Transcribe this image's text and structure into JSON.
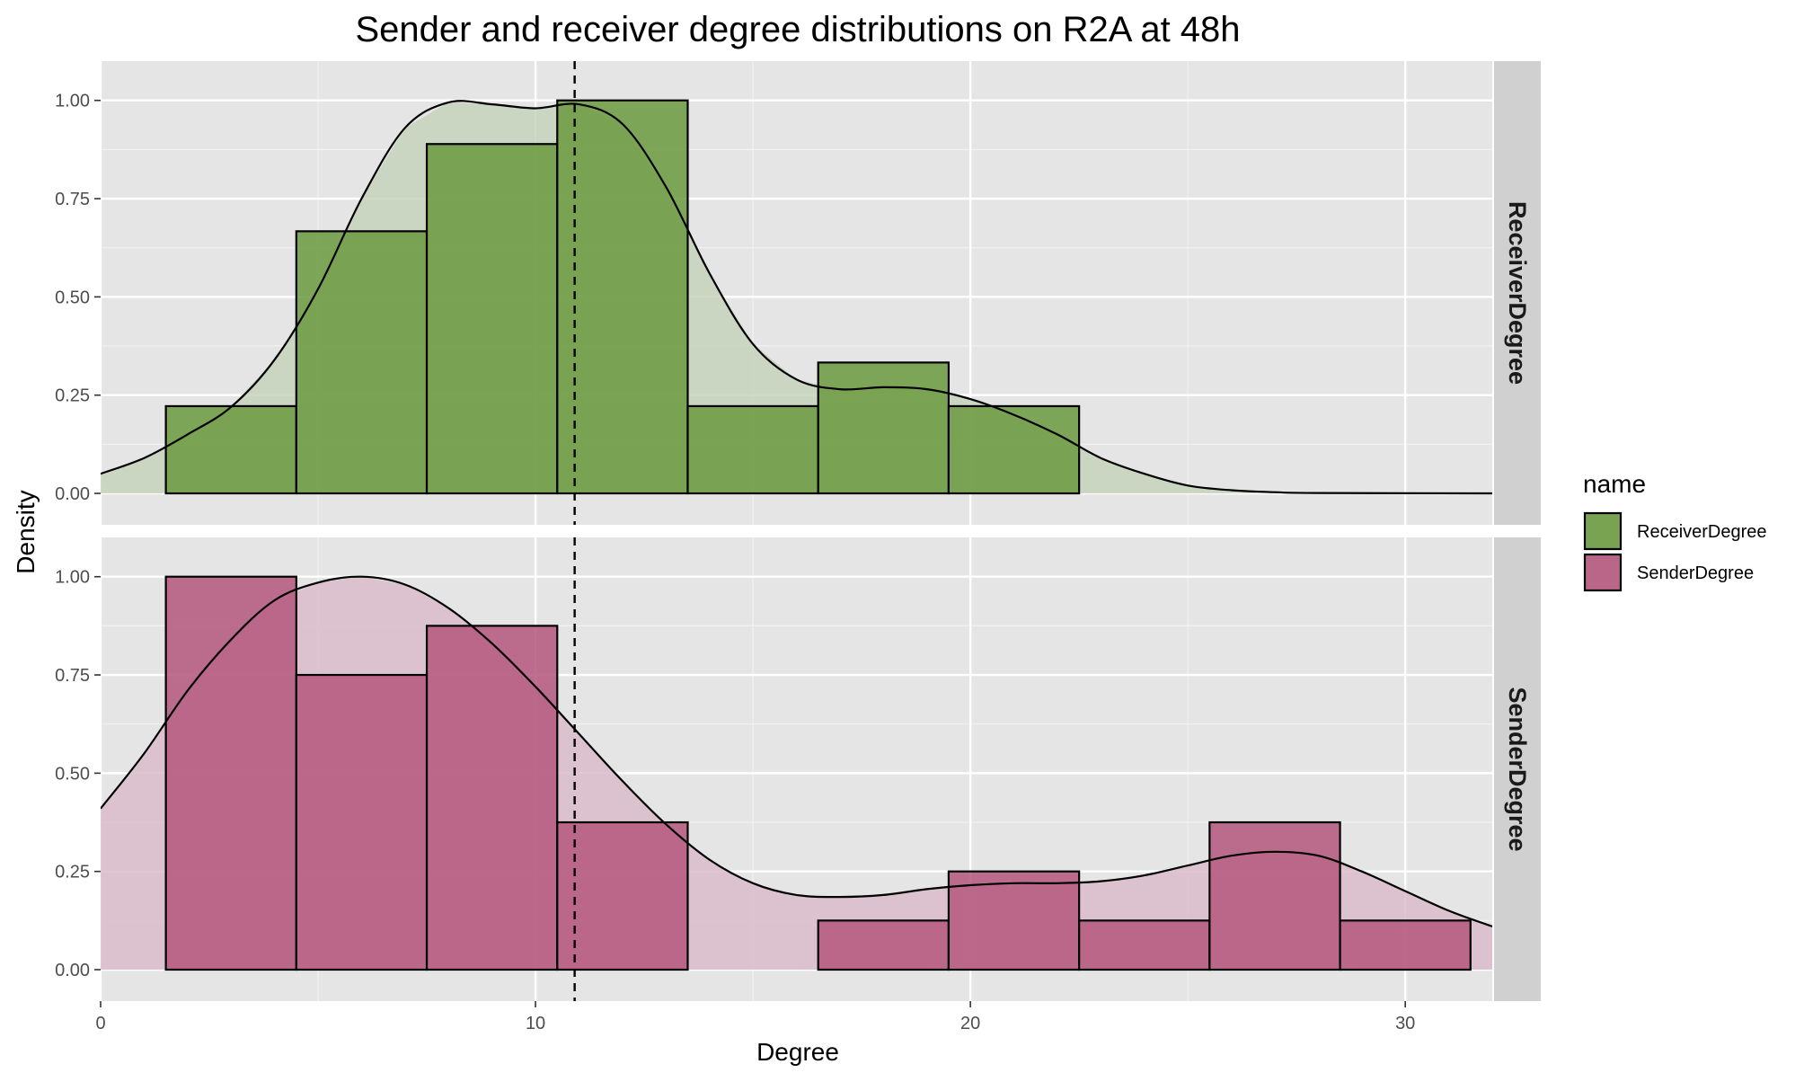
{
  "chart_data": {
    "type": "bar",
    "title": "Sender and receiver degree distributions on R2A at 48h",
    "xlabel": "Degree",
    "ylabel": "Density",
    "xlim": [
      0,
      32
    ],
    "ylim": [
      -0.08,
      1.1
    ],
    "x_ticks": [
      0,
      10,
      20,
      30
    ],
    "y_ticks": [
      0,
      0.25,
      0.5,
      0.75,
      1.0
    ],
    "y_tick_labels": [
      "0.00",
      "0.25",
      "0.50",
      "0.75",
      "1.00"
    ],
    "bin_width": 3,
    "grid": true,
    "legend": {
      "title": "name",
      "position": "right",
      "items": [
        {
          "label": "ReceiverDegree",
          "color": "#6b9a3e"
        },
        {
          "label": "SenderDegree",
          "color": "#b4577c"
        }
      ]
    },
    "reference_line": {
      "x": 10.9,
      "style": "dashed"
    },
    "panels": [
      {
        "name": "ReceiverDegree",
        "strip_label": "ReceiverDegree",
        "fill": "#6b9a3e",
        "density_fill": "#c5d4bb",
        "bins": [
          {
            "x0": 1.5,
            "x1": 4.5,
            "value": 0.222
          },
          {
            "x0": 4.5,
            "x1": 7.5,
            "value": 0.667
          },
          {
            "x0": 7.5,
            "x1": 10.5,
            "value": 0.889
          },
          {
            "x0": 10.5,
            "x1": 13.5,
            "value": 1.0
          },
          {
            "x0": 13.5,
            "x1": 16.5,
            "value": 0.222
          },
          {
            "x0": 16.5,
            "x1": 19.5,
            "value": 0.333
          },
          {
            "x0": 19.5,
            "x1": 22.5,
            "value": 0.222
          }
        ],
        "density": [
          [
            0,
            0.05
          ],
          [
            1,
            0.09
          ],
          [
            2,
            0.15
          ],
          [
            3,
            0.22
          ],
          [
            4,
            0.34
          ],
          [
            5,
            0.52
          ],
          [
            6,
            0.75
          ],
          [
            7,
            0.93
          ],
          [
            8,
            0.995
          ],
          [
            9,
            0.99
          ],
          [
            10,
            0.98
          ],
          [
            11,
            0.99
          ],
          [
            12,
            0.94
          ],
          [
            13,
            0.78
          ],
          [
            14,
            0.56
          ],
          [
            15,
            0.38
          ],
          [
            16,
            0.29
          ],
          [
            17,
            0.265
          ],
          [
            18,
            0.27
          ],
          [
            19,
            0.265
          ],
          [
            20,
            0.24
          ],
          [
            21,
            0.2
          ],
          [
            22,
            0.15
          ],
          [
            23,
            0.09
          ],
          [
            24,
            0.05
          ],
          [
            25,
            0.02
          ],
          [
            26,
            0.008
          ],
          [
            27,
            0.003
          ],
          [
            28,
            0.001
          ],
          [
            32,
            0.0
          ]
        ]
      },
      {
        "name": "SenderDegree",
        "strip_label": "SenderDegree",
        "fill": "#b4577c",
        "density_fill": "#dabccb",
        "bins": [
          {
            "x0": 1.5,
            "x1": 4.5,
            "value": 1.0
          },
          {
            "x0": 4.5,
            "x1": 7.5,
            "value": 0.75
          },
          {
            "x0": 7.5,
            "x1": 10.5,
            "value": 0.875
          },
          {
            "x0": 10.5,
            "x1": 13.5,
            "value": 0.375
          },
          {
            "x0": 13.5,
            "x1": 16.5,
            "value": 0.0
          },
          {
            "x0": 16.5,
            "x1": 19.5,
            "value": 0.125
          },
          {
            "x0": 19.5,
            "x1": 22.5,
            "value": 0.25
          },
          {
            "x0": 22.5,
            "x1": 25.5,
            "value": 0.125
          },
          {
            "x0": 25.5,
            "x1": 28.5,
            "value": 0.375
          },
          {
            "x0": 28.5,
            "x1": 31.5,
            "value": 0.125
          }
        ],
        "density": [
          [
            0,
            0.41
          ],
          [
            1,
            0.55
          ],
          [
            2,
            0.71
          ],
          [
            3,
            0.84
          ],
          [
            4,
            0.94
          ],
          [
            5,
            0.985
          ],
          [
            6,
            1.0
          ],
          [
            7,
            0.98
          ],
          [
            8,
            0.92
          ],
          [
            9,
            0.83
          ],
          [
            10,
            0.72
          ],
          [
            11,
            0.6
          ],
          [
            12,
            0.48
          ],
          [
            13,
            0.37
          ],
          [
            14,
            0.28
          ],
          [
            15,
            0.22
          ],
          [
            16,
            0.19
          ],
          [
            17,
            0.185
          ],
          [
            18,
            0.19
          ],
          [
            19,
            0.205
          ],
          [
            20,
            0.215
          ],
          [
            21,
            0.22
          ],
          [
            22,
            0.22
          ],
          [
            23,
            0.225
          ],
          [
            24,
            0.24
          ],
          [
            25,
            0.265
          ],
          [
            26,
            0.29
          ],
          [
            27,
            0.3
          ],
          [
            28,
            0.29
          ],
          [
            29,
            0.25
          ],
          [
            30,
            0.2
          ],
          [
            31,
            0.15
          ],
          [
            32,
            0.11
          ]
        ]
      }
    ]
  }
}
